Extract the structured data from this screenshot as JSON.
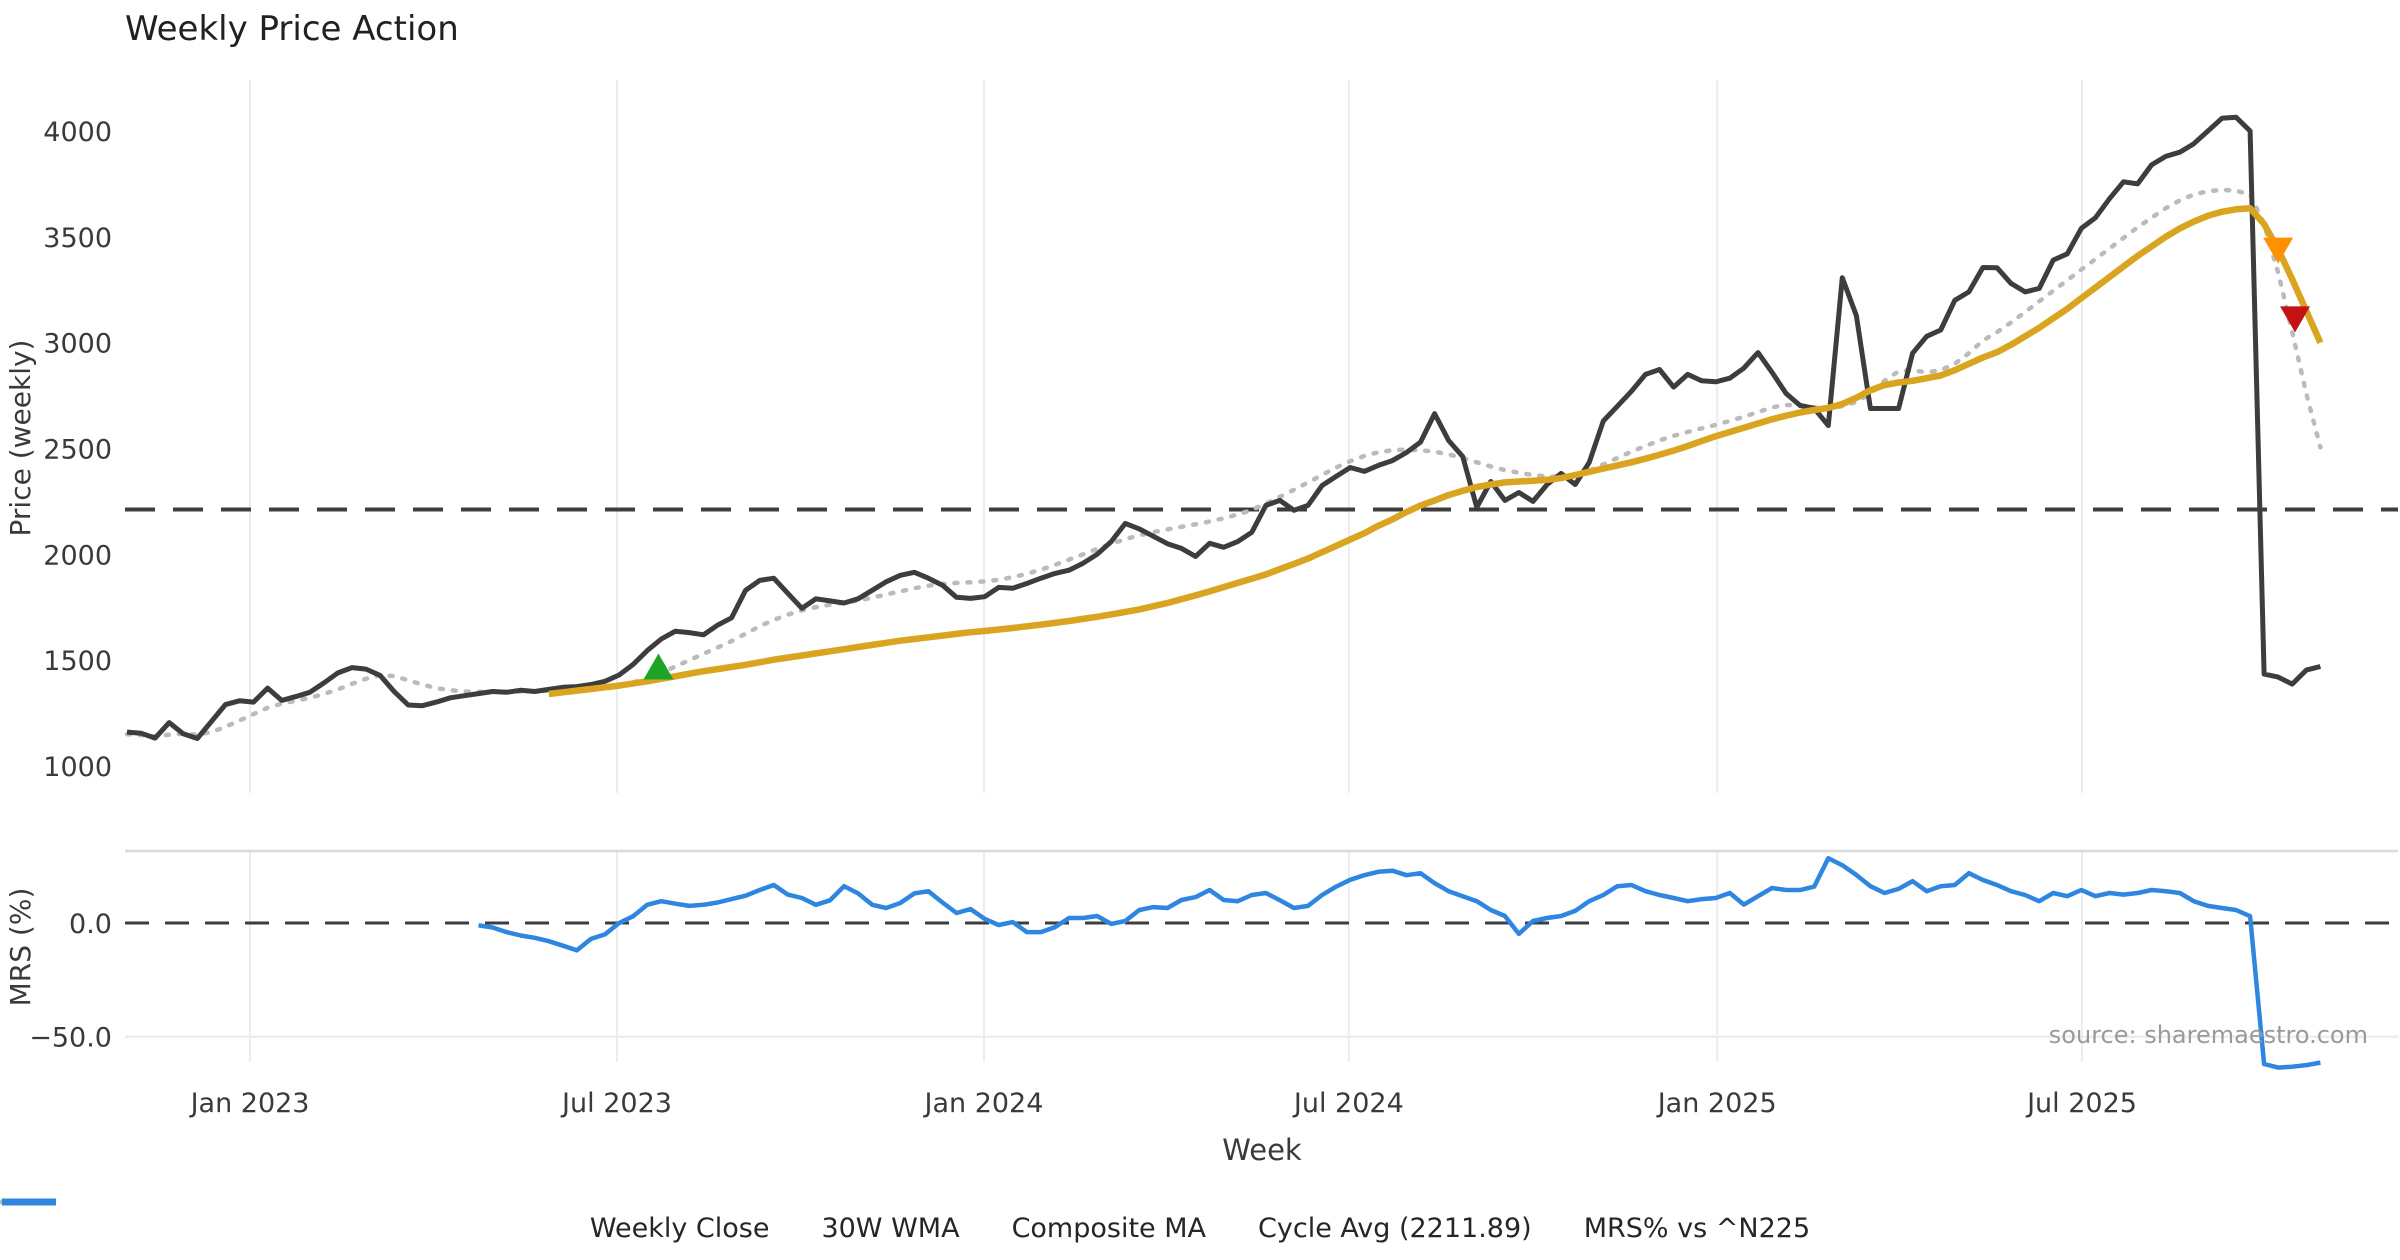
{
  "title": "Weekly Price Action",
  "source_text": "source: sharemaestro.com",
  "axes": {
    "price_label": "Price (weekly)",
    "mrs_label": "MRS (%)",
    "x_label": "Week",
    "price_ticks": [
      1000,
      1500,
      2000,
      2500,
      3000,
      3500,
      4000
    ],
    "mrs_ticks": [
      {
        "label": "0.0",
        "value": 0
      },
      {
        "label": "−50.0",
        "value": -50
      }
    ],
    "x_ticks": [
      {
        "label": "Jan 2023",
        "week": 8.75
      },
      {
        "label": "Jul 2023",
        "week": 34.85
      },
      {
        "label": "Jan 2024",
        "week": 60.95
      },
      {
        "label": "Jul 2024",
        "week": 86.9
      },
      {
        "label": "Jan 2025",
        "week": 113.1
      },
      {
        "label": "Jul 2025",
        "week": 139.05
      }
    ]
  },
  "legend": [
    {
      "label": "Weekly Close",
      "color": "#3d3d3d",
      "style": "solid"
    },
    {
      "label": "30W WMA",
      "color": "#d9a521",
      "style": "solid"
    },
    {
      "label": "Composite MA",
      "color": "#bbbbbb",
      "style": "dotted"
    },
    {
      "label": "Cycle Avg (2211.89)",
      "color": "#3d3d3d",
      "style": "dashed"
    },
    {
      "label": "MRS% vs ^N225",
      "color": "#2e86e0",
      "style": "solid"
    }
  ],
  "colors": {
    "close": "#3d3d3d",
    "wma": "#d9a521",
    "composite": "#bbbbbb",
    "cycle": "#3d3d3d",
    "mrs": "#2e86e0",
    "grid": "#ebedf0",
    "spine": "#d8dade",
    "buy_marker": "#1da427",
    "warn_marker": "#ff9100",
    "sell_marker": "#c51212",
    "tick_text": "#3a3a3a",
    "source": "#9a9a9a"
  },
  "chart_data": {
    "type": "line",
    "x_unit": "week_index",
    "start_date": "2022-10-31",
    "weeks": 157,
    "price_ylim": [
      930,
      4200
    ],
    "mrs_ylim": [
      -68,
      32
    ],
    "cycle_avg": 2211.89,
    "series": [
      {
        "name": "Weekly Close",
        "values": [
          1160,
          1155,
          1132,
          1205,
          1152,
          1130,
          1210,
          1290,
          1308,
          1302,
          1368,
          1310,
          1328,
          1348,
          1392,
          1440,
          1465,
          1458,
          1428,
          1352,
          1288,
          1285,
          1302,
          1322,
          1332,
          1342,
          1352,
          1348,
          1358,
          1352,
          1362,
          1372,
          1375,
          1385,
          1400,
          1430,
          1480,
          1545,
          1600,
          1637,
          1630,
          1620,
          1665,
          1700,
          1830,
          1877,
          1887,
          1816,
          1745,
          1790,
          1780,
          1770,
          1790,
          1830,
          1870,
          1901,
          1915,
          1887,
          1854,
          1797,
          1792,
          1800,
          1844,
          1840,
          1862,
          1887,
          1910,
          1925,
          1958,
          2000,
          2060,
          2146,
          2120,
          2085,
          2050,
          2028,
          1990,
          2052,
          2033,
          2060,
          2104,
          2231,
          2255,
          2208,
          2231,
          2325,
          2368,
          2410,
          2392,
          2420,
          2443,
          2481,
          2530,
          2665,
          2538,
          2462,
          2222,
          2344,
          2255,
          2292,
          2250,
          2330,
          2382,
          2330,
          2434,
          2630,
          2700,
          2770,
          2850,
          2873,
          2790,
          2850,
          2820,
          2815,
          2832,
          2880,
          2953,
          2860,
          2760,
          2703,
          2690,
          2608,
          3307,
          3127,
          2689,
          2689,
          2689,
          2950,
          3030,
          3060,
          3200,
          3240,
          3355,
          3354,
          3280,
          3240,
          3256,
          3390,
          3420,
          3540,
          3590,
          3680,
          3760,
          3750,
          3840,
          3880,
          3900,
          3940,
          4000,
          4060,
          4065,
          4000,
          1434,
          1420,
          1387,
          1453,
          1470
        ]
      },
      {
        "name": "30W WMA",
        "start_week": 30,
        "values": [
          1340,
          1348,
          1356,
          1364,
          1372,
          1380,
          1390,
          1400,
          1412,
          1424,
          1436,
          1448,
          1458,
          1468,
          1478,
          1490,
          1502,
          1512,
          1522,
          1532,
          1542,
          1552,
          1562,
          1572,
          1582,
          1592,
          1600,
          1608,
          1616,
          1624,
          1632,
          1638,
          1645,
          1652,
          1660,
          1668,
          1676,
          1685,
          1695,
          1705,
          1716,
          1728,
          1740,
          1755,
          1770,
          1788,
          1806,
          1825,
          1845,
          1865,
          1885,
          1905,
          1930,
          1955,
          1980,
          2010,
          2040,
          2070,
          2100,
          2135,
          2165,
          2200,
          2230,
          2255,
          2280,
          2300,
          2318,
          2330,
          2340,
          2344,
          2348,
          2352,
          2360,
          2375,
          2390,
          2405,
          2420,
          2435,
          2452,
          2470,
          2490,
          2512,
          2535,
          2558,
          2578,
          2598,
          2618,
          2638,
          2655,
          2670,
          2682,
          2692,
          2710,
          2740,
          2775,
          2800,
          2812,
          2820,
          2832,
          2845,
          2870,
          2900,
          2930,
          2955,
          2990,
          3030,
          3070,
          3115,
          3160,
          3210,
          3260,
          3310,
          3360,
          3410,
          3455,
          3500,
          3540,
          3572,
          3600,
          3618,
          3630,
          3635,
          3560,
          3440,
          3300,
          3150,
          3000
        ]
      },
      {
        "name": "Composite MA",
        "start_week": 0,
        "values": [
          1150,
          1146,
          1140,
          1148,
          1152,
          1148,
          1160,
          1185,
          1215,
          1245,
          1275,
          1295,
          1308,
          1322,
          1340,
          1362,
          1388,
          1412,
          1428,
          1425,
          1405,
          1385,
          1368,
          1358,
          1352,
          1350,
          1352,
          1350,
          1352,
          1354,
          1356,
          1358,
          1360,
          1364,
          1370,
          1380,
          1395,
          1415,
          1440,
          1470,
          1500,
          1530,
          1560,
          1590,
          1625,
          1660,
          1690,
          1715,
          1735,
          1750,
          1762,
          1772,
          1782,
          1795,
          1810,
          1825,
          1840,
          1852,
          1860,
          1865,
          1868,
          1872,
          1880,
          1892,
          1908,
          1928,
          1950,
          1975,
          2000,
          2025,
          2050,
          2072,
          2090,
          2105,
          2118,
          2130,
          2142,
          2155,
          2170,
          2188,
          2210,
          2240,
          2272,
          2305,
          2340,
          2375,
          2410,
          2440,
          2465,
          2482,
          2492,
          2495,
          2492,
          2485,
          2472,
          2455,
          2435,
          2415,
          2398,
          2385,
          2375,
          2368,
          2365,
          2372,
          2395,
          2425,
          2455,
          2485,
          2512,
          2538,
          2560,
          2578,
          2595,
          2612,
          2630,
          2650,
          2672,
          2694,
          2706,
          2702,
          2695,
          2690,
          2700,
          2720,
          2760,
          2820,
          2865,
          2870,
          2860,
          2870,
          2900,
          2950,
          3010,
          3050,
          3095,
          3145,
          3195,
          3245,
          3295,
          3345,
          3395,
          3445,
          3495,
          3545,
          3590,
          3635,
          3672,
          3700,
          3715,
          3722,
          3718,
          3700,
          3560,
          3330,
          3050,
          2760,
          2505
        ]
      },
      {
        "name": "MRS% vs ^N225",
        "start_week": 25,
        "values": [
          -1,
          -2,
          -4,
          -5.5,
          -6.5,
          -8,
          -10,
          -12,
          -7,
          -5,
          0,
          3,
          8,
          9.6,
          8.5,
          7.5,
          8,
          9,
          10.5,
          12,
          14.5,
          16.7,
          12.5,
          11,
          8,
          10,
          16.2,
          13,
          8,
          6.6,
          8.8,
          13,
          14,
          9,
          4.4,
          6.1,
          1.8,
          -0.9,
          0.4,
          -4,
          -4,
          -1.8,
          2.2,
          2.2,
          3.1,
          -0.4,
          0.9,
          5.7,
          7,
          6.6,
          10.1,
          11.4,
          14.5,
          10.1,
          9.6,
          12.3,
          13.2,
          10,
          6.6,
          7.5,
          12.3,
          16,
          19,
          21,
          22.5,
          23,
          21,
          21.9,
          17.5,
          14,
          11.8,
          9.6,
          5.7,
          3.1,
          -4.8,
          0.9,
          2.2,
          3.1,
          5.3,
          9.6,
          12.3,
          16.2,
          16.7,
          14,
          12.3,
          11,
          9.6,
          10.5,
          11,
          13.2,
          8.1,
          11.8,
          15.4,
          14.5,
          14.5,
          16,
          28.5,
          25.4,
          21.1,
          16.2,
          13.2,
          15,
          18.4,
          14,
          16.2,
          16.7,
          21.9,
          18.9,
          16.7,
          14,
          12.3,
          9.6,
          13.2,
          11.8,
          14.5,
          11.8,
          13.2,
          12.5,
          13.2,
          14.5,
          14,
          13.2,
          9.6,
          7.5,
          6.6,
          5.7,
          3,
          -62,
          -63.6,
          -63.2,
          -62.5,
          -61.4
        ]
      }
    ],
    "markers": [
      {
        "name": "buy-signal",
        "shape": "triangle-up",
        "color": "#1da427",
        "week": 37.8,
        "price": 1470
      },
      {
        "name": "warn-signal",
        "shape": "triangle-down",
        "color": "#ff9100",
        "week": 153,
        "price": 3435
      },
      {
        "name": "sell-signal",
        "shape": "triangle-down",
        "color": "#c51212",
        "week": 154.2,
        "price": 3110
      }
    ]
  }
}
